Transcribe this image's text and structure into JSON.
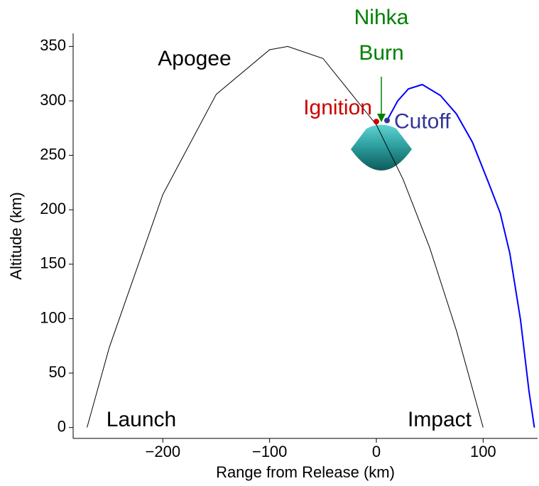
{
  "chart_data": {
    "type": "line",
    "x_label": "Range from Release (km)",
    "y_label": "Altitude (km)",
    "xlim": [
      -284,
      151
    ],
    "ylim": [
      -10,
      362
    ],
    "xticks": [
      {
        "value": -200,
        "label": "−200"
      },
      {
        "value": -100,
        "label": "−100"
      },
      0,
      100
    ],
    "yticks": [
      0,
      50,
      100,
      150,
      200,
      250,
      300,
      350
    ],
    "series": [
      {
        "color": "#000000",
        "x": [
          -271,
          -250,
          -200,
          -150,
          -100,
          -83,
          -50,
          0,
          25,
          50,
          75,
          100
        ],
        "values": [
          0,
          74,
          214,
          306,
          347,
          350,
          339,
          278,
          228,
          165,
          89,
          0
        ]
      },
      {
        "color": "#0000ff",
        "x": [
          10,
          20,
          30,
          43,
          60,
          75,
          90,
          105,
          116,
          125,
          135,
          143,
          148
        ],
        "values": [
          282,
          300,
          311,
          315,
          305,
          288,
          262,
          225,
          197,
          160,
          99,
          33,
          0
        ]
      }
    ],
    "markers": [
      {
        "name": "Ignition",
        "x": 0,
        "y": 281,
        "color": "#cc0000"
      },
      {
        "name": "Cutoff",
        "x": 10,
        "y": 282,
        "color": "#333399"
      }
    ],
    "annotations": [
      {
        "text": "Apogee",
        "color": "#000000"
      },
      {
        "text": "Launch",
        "color": "#000000"
      },
      {
        "text": "Impact",
        "color": "#000000"
      },
      {
        "text": "Nihka",
        "color": "#008000"
      },
      {
        "text": "Burn",
        "color": "#008000"
      }
    ]
  }
}
